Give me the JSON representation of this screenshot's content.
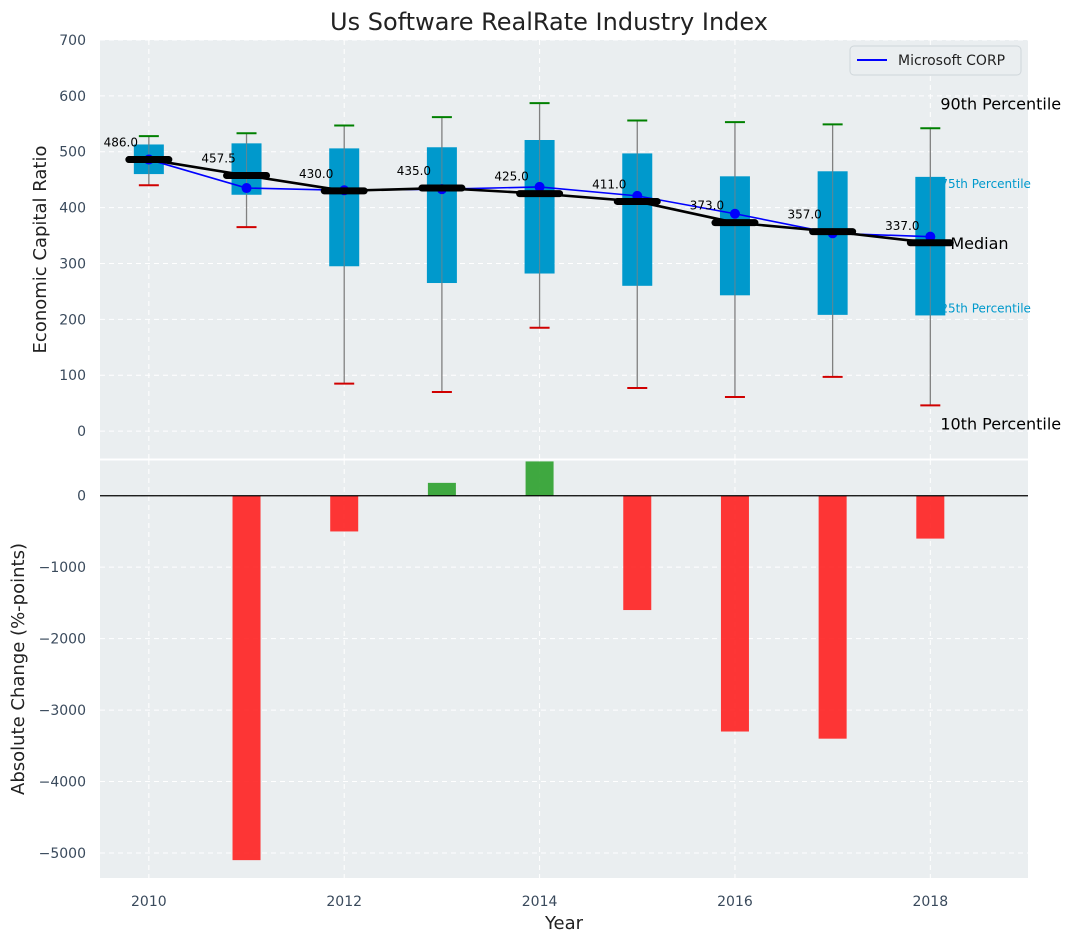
{
  "chart_data": [
    {
      "type": "box+line",
      "title": "Us Software RealRate Industry Index",
      "xlabel": "",
      "ylabel": "Economic Capital Ratio",
      "ylim": [
        -50,
        700
      ],
      "yticks": [
        0,
        100,
        200,
        300,
        400,
        500,
        600,
        700
      ],
      "xlim": [
        2009.5,
        2019.0
      ],
      "grid": true,
      "years": [
        2010,
        2011,
        2012,
        2013,
        2014,
        2015,
        2016,
        2017,
        2018
      ],
      "p10": [
        440,
        365,
        85,
        70,
        185,
        77,
        61,
        97,
        46
      ],
      "p25": [
        460,
        423,
        295,
        265,
        282,
        260,
        243,
        208,
        207
      ],
      "median": [
        486.0,
        457.5,
        430.0,
        435.0,
        425.0,
        411.0,
        373.0,
        357.0,
        337.0
      ],
      "median_labels": [
        "486.0",
        "457.5",
        "430.0",
        "435.0",
        "425.0",
        "411.0",
        "373.0",
        "357.0",
        "337.0"
      ],
      "p75": [
        513,
        515,
        506,
        508,
        521,
        497,
        456,
        465,
        455
      ],
      "p90": [
        528,
        533,
        547,
        562,
        587,
        556,
        553,
        549,
        542
      ],
      "series": [
        {
          "name": "Microsoft CORP",
          "color": "#0000ff",
          "values": [
            486,
            435,
            431,
            433,
            437,
            421,
            389,
            354,
            348
          ]
        }
      ],
      "legend": {
        "entries": [
          "Microsoft CORP"
        ],
        "placement": "top-right"
      },
      "annotations": {
        "p90": "90th Percentile",
        "p75": "75th Percentile",
        "median": "Median",
        "p25": "25th Percentile",
        "p10": "10th Percentile"
      }
    },
    {
      "type": "bar",
      "xlabel": "Year",
      "ylabel": "Absolute Change (%-points)",
      "ylim": [
        -5350,
        500
      ],
      "yticks": [
        -5000,
        -4000,
        -3000,
        -2000,
        -1000,
        0
      ],
      "ytick_labels": [
        "−5000",
        "−4000",
        "−3000",
        "−2000",
        "−1000",
        "0"
      ],
      "xticks": [
        2010,
        2012,
        2014,
        2016,
        2018
      ],
      "categories": [
        2011,
        2012,
        2013,
        2014,
        2015,
        2016,
        2017,
        2018
      ],
      "values": [
        -5100,
        -500,
        180,
        480,
        -1600,
        -3300,
        -3400,
        -600
      ],
      "colors": {
        "positive": "#2ca02c",
        "negative": "#ff2020"
      },
      "grid": true
    }
  ],
  "colors": {
    "plot_bg": "#eaeef0",
    "box_fill": "#0099cc",
    "whisker": "#808080",
    "cap_high": "#008000",
    "cap_low": "#d00000",
    "median_line": "#000000",
    "percentile_label": "#0099cc",
    "tick_text": "#3a4a5c"
  }
}
